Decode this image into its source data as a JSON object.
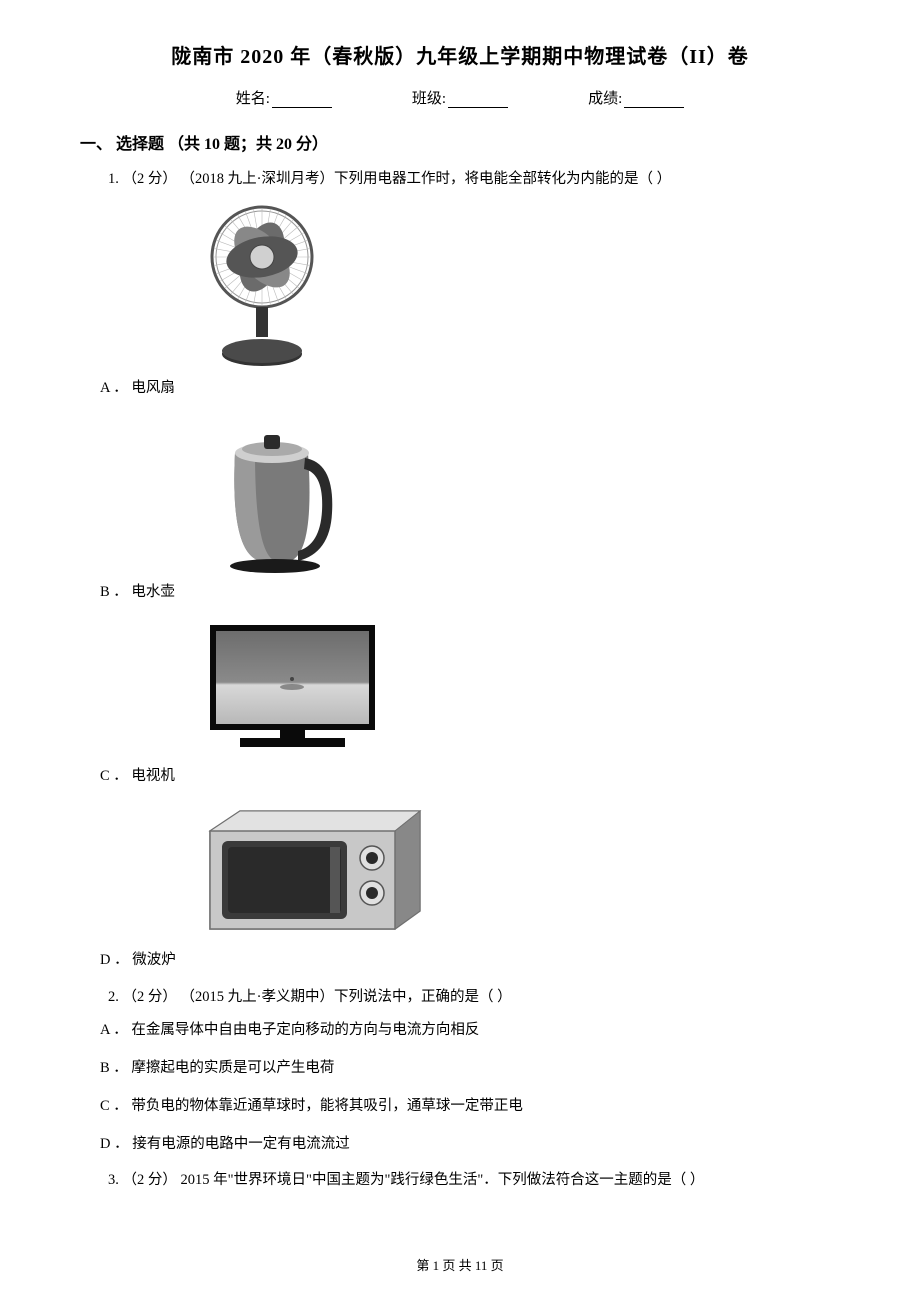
{
  "title": "陇南市 2020 年（春秋版）九年级上学期期中物理试卷（II）卷",
  "info": {
    "name_label": "姓名:",
    "class_label": "班级:",
    "score_label": "成绩:"
  },
  "section1": {
    "header": "一、 选择题 （共 10 题；共 20 分）"
  },
  "q1": {
    "stem": "1.   （2 分）  （2018 九上·深圳月考）下列用电器工作时，将电能全部转化为内能的是（       ）",
    "a": "A ．  电风扇",
    "b": "B ．  电水壶",
    "c": "C ．  电视机",
    "d": "D ．  微波炉",
    "images": {
      "fan": {
        "bg": "#f2f2f2",
        "blade": "#6b6b6b",
        "base": "#333333",
        "highlight": "#d0d0d0"
      },
      "kettle": {
        "body": "#7a7a7a",
        "handle": "#2a2a2a",
        "base": "#1a1a1a",
        "lid": "#cfcfcf"
      },
      "tv": {
        "frame": "#0a0a0a",
        "screen_top": "#7d7d7d",
        "screen_bottom": "#d8d8d8",
        "stand": "#0a0a0a"
      },
      "microwave": {
        "body": "#b9b9b9",
        "door": "#3a3a3a",
        "panel": "#c8c8c8",
        "knob": "#2a2a2a",
        "outline": "#707070"
      }
    }
  },
  "q2": {
    "stem": "2.   （2 分）  （2015 九上·孝义期中）下列说法中，正确的是（       ）",
    "a": "A ．  在金属导体中自由电子定向移动的方向与电流方向相反",
    "b": "B ．  摩擦起电的实质是可以产生电荷",
    "c": "C ．  带负电的物体靠近通草球时，能将其吸引，通草球一定带正电",
    "d": "D ．  接有电源的电路中一定有电流流过"
  },
  "q3": {
    "stem": "3.   （2 分）   2015 年\"世界环境日\"中国主题为\"践行绿色生活\"．下列做法符合这一主题的是（       ）"
  },
  "footer": "第  1  页  共  11  页",
  "colors": {
    "text": "#000000",
    "bg": "#ffffff"
  }
}
